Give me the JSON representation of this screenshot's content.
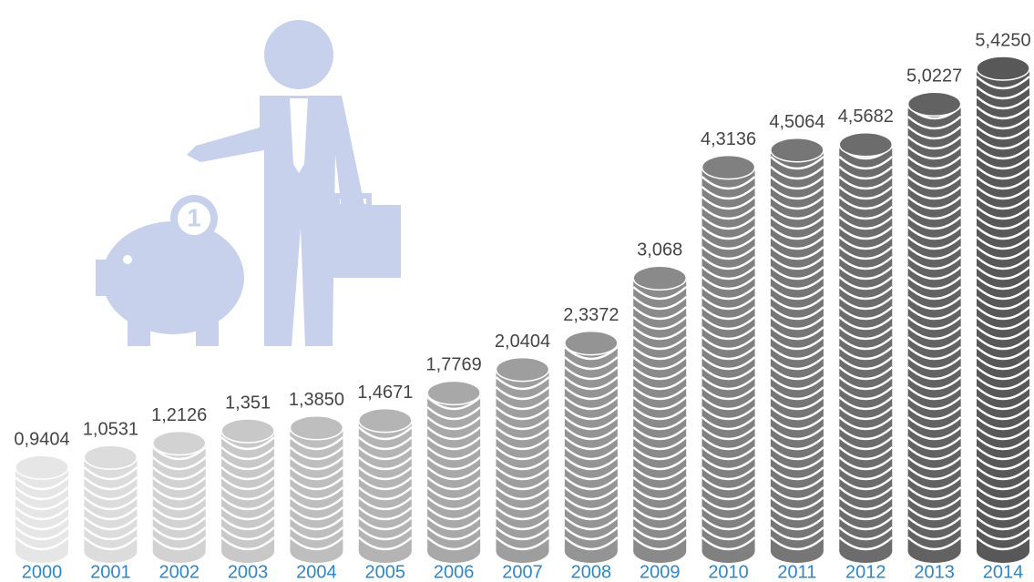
{
  "chart_data": {
    "type": "bar",
    "categories": [
      "2000",
      "2001",
      "2002",
      "2003",
      "2004",
      "2005",
      "2006",
      "2007",
      "2008",
      "2009",
      "2010",
      "2011",
      "2012",
      "2013",
      "2014"
    ],
    "values": [
      0.9404,
      1.0531,
      1.2126,
      1.351,
      1.385,
      1.4671,
      1.7769,
      2.0404,
      2.3372,
      3.068,
      4.3136,
      4.5064,
      4.5682,
      5.0227,
      5.425
    ],
    "value_labels": [
      "0,9404",
      "1,0531",
      "1,2126",
      "1,351",
      "1,3850",
      "1,4671",
      "1,7769",
      "2,0404",
      "2,3372",
      "3,068",
      "4,3136",
      "4,5064",
      "4,5682",
      "5,0227",
      "5,4250"
    ],
    "colors": [
      "#e6e6e6",
      "#dcdcdc",
      "#d2d2d2",
      "#c8c8c8",
      "#bebebe",
      "#b4b4b4",
      "#a8a8a8",
      "#9e9e9e",
      "#949494",
      "#8a8a8a",
      "#808080",
      "#767676",
      "#6c6c6c",
      "#626262",
      "#585858"
    ],
    "category_color": "#2e86c9"
  }
}
